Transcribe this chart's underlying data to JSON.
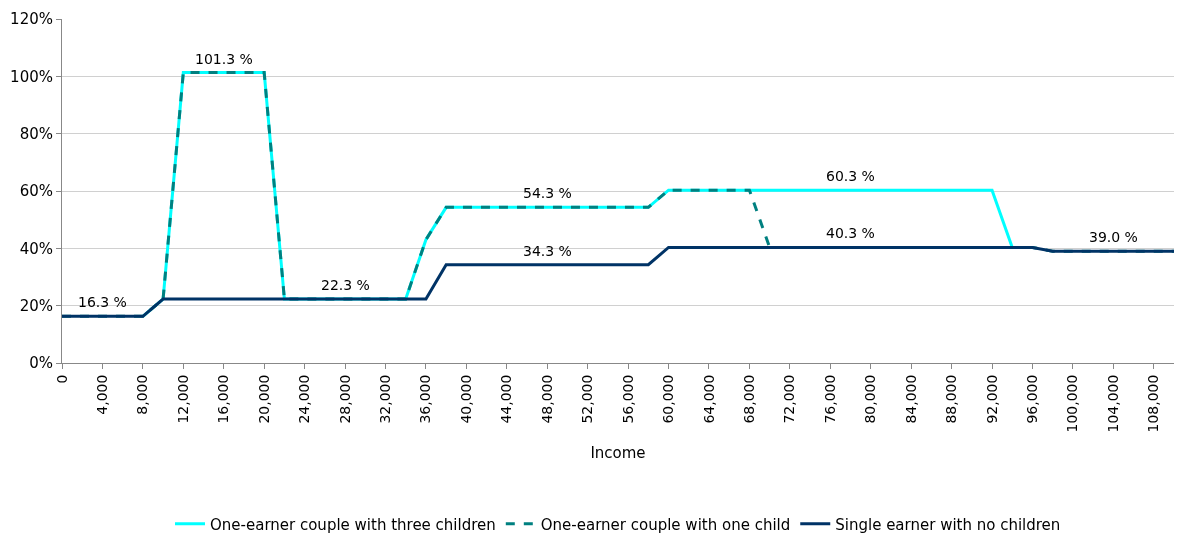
{
  "chart_data": {
    "type": "line",
    "xlabel": "Income",
    "x": [
      0,
      2000,
      4000,
      6000,
      8000,
      10000,
      12000,
      14000,
      16000,
      18000,
      20000,
      22000,
      24000,
      26000,
      28000,
      30000,
      32000,
      34000,
      36000,
      38000,
      40000,
      42000,
      44000,
      46000,
      48000,
      50000,
      52000,
      54000,
      56000,
      58000,
      60000,
      62000,
      64000,
      66000,
      68000,
      70000,
      72000,
      74000,
      76000,
      78000,
      80000,
      82000,
      84000,
      86000,
      88000,
      90000,
      92000,
      94000,
      96000,
      98000,
      100000,
      102000,
      104000,
      106000,
      108000,
      110000
    ],
    "series": [
      {
        "name": "One-earner couple with three children",
        "color": "#00ffff",
        "line_style": "solid",
        "values": [
          null,
          null,
          null,
          null,
          16.3,
          22.3,
          101.3,
          101.3,
          101.3,
          101.3,
          101.3,
          22.3,
          22.3,
          22.3,
          22.3,
          22.3,
          22.3,
          22.3,
          43,
          54.3,
          54.3,
          54.3,
          54.3,
          54.3,
          54.3,
          54.3,
          54.3,
          54.3,
          54.3,
          54.3,
          60.3,
          60.3,
          60.3,
          60.3,
          60.3,
          60.3,
          60.3,
          60.3,
          60.3,
          60.3,
          60.3,
          60.3,
          60.3,
          60.3,
          60.3,
          60.3,
          60.3,
          40.3,
          40.3,
          null,
          null,
          null,
          null,
          null,
          null,
          null
        ]
      },
      {
        "name": "One-earner couple with one child",
        "color": "#008080",
        "line_style": "dashed",
        "values": [
          16.3,
          16.3,
          16.3,
          16.3,
          16.3,
          22.3,
          101.3,
          101.3,
          101.3,
          101.3,
          101.3,
          22.3,
          22.3,
          22.3,
          22.3,
          22.3,
          22.3,
          22.3,
          43,
          54.3,
          54.3,
          54.3,
          54.3,
          54.3,
          54.3,
          54.3,
          54.3,
          54.3,
          54.3,
          54.3,
          60.3,
          60.3,
          60.3,
          60.3,
          60.3,
          40.3,
          40.3,
          40.3,
          40.3,
          40.3,
          40.3,
          40.3,
          40.3,
          40.3,
          40.3,
          40.3,
          40.3,
          40.3,
          40.3,
          39.0,
          39.0,
          39.0,
          39.0,
          39.0,
          39.0,
          39.0
        ]
      },
      {
        "name": "Single earner with no children",
        "color": "#003366",
        "line_style": "solid",
        "values": [
          16.3,
          16.3,
          16.3,
          16.3,
          16.3,
          22.3,
          22.3,
          22.3,
          22.3,
          22.3,
          22.3,
          22.3,
          22.3,
          22.3,
          22.3,
          22.3,
          22.3,
          22.3,
          22.3,
          34.3,
          34.3,
          34.3,
          34.3,
          34.3,
          34.3,
          34.3,
          34.3,
          34.3,
          34.3,
          34.3,
          40.3,
          40.3,
          40.3,
          40.3,
          40.3,
          40.3,
          40.3,
          40.3,
          40.3,
          40.3,
          40.3,
          40.3,
          40.3,
          40.3,
          40.3,
          40.3,
          40.3,
          40.3,
          40.3,
          39.0,
          39.0,
          39.0,
          39.0,
          39.0,
          39.0,
          39.0
        ]
      }
    ],
    "xlim": [
      0,
      110000
    ],
    "xticks": [
      {
        "value": 0,
        "label": "0"
      },
      {
        "value": 4000,
        "label": "4,000"
      },
      {
        "value": 8000,
        "label": "8,000"
      },
      {
        "value": 12000,
        "label": "12,000"
      },
      {
        "value": 16000,
        "label": "16,000"
      },
      {
        "value": 20000,
        "label": "20,000"
      },
      {
        "value": 24000,
        "label": "24,000"
      },
      {
        "value": 28000,
        "label": "28,000"
      },
      {
        "value": 32000,
        "label": "32,000"
      },
      {
        "value": 36000,
        "label": "36,000"
      },
      {
        "value": 40000,
        "label": "40,000"
      },
      {
        "value": 44000,
        "label": "44,000"
      },
      {
        "value": 48000,
        "label": "48,000"
      },
      {
        "value": 52000,
        "label": "52,000"
      },
      {
        "value": 56000,
        "label": "56,000"
      },
      {
        "value": 60000,
        "label": "60,000"
      },
      {
        "value": 64000,
        "label": "64,000"
      },
      {
        "value": 68000,
        "label": "68,000"
      },
      {
        "value": 72000,
        "label": "72,000"
      },
      {
        "value": 76000,
        "label": "76,000"
      },
      {
        "value": 80000,
        "label": "80,000"
      },
      {
        "value": 84000,
        "label": "84,000"
      },
      {
        "value": 88000,
        "label": "88,000"
      },
      {
        "value": 92000,
        "label": "92,000"
      },
      {
        "value": 96000,
        "label": "96,000"
      },
      {
        "value": 100000,
        "label": "100,000"
      },
      {
        "value": 104000,
        "label": "104,000"
      },
      {
        "value": 108000,
        "label": "108,000"
      }
    ],
    "ylim": [
      0,
      120
    ],
    "yticks": [
      {
        "value": 0,
        "label": "0%"
      },
      {
        "value": 20,
        "label": "20%"
      },
      {
        "value": 40,
        "label": "40%"
      },
      {
        "value": 60,
        "label": "60%"
      },
      {
        "value": 80,
        "label": "80%"
      },
      {
        "value": 100,
        "label": "100%"
      },
      {
        "value": 120,
        "label": "120%"
      }
    ],
    "grid": "y",
    "legend": "bottom",
    "annotations": [
      {
        "text": "16.3 %",
        "x": 4000,
        "y": 16.3
      },
      {
        "text": "101.3 %",
        "x": 16000,
        "y": 101.3
      },
      {
        "text": "22.3 %",
        "x": 28000,
        "y": 22.3
      },
      {
        "text": "54.3 %",
        "x": 48000,
        "y": 54.3
      },
      {
        "text": "34.3 %",
        "x": 48000,
        "y": 34.3
      },
      {
        "text": "60.3 %",
        "x": 78000,
        "y": 60.3
      },
      {
        "text": "40.3 %",
        "x": 78000,
        "y": 40.3
      },
      {
        "text": "39.0 %",
        "x": 104000,
        "y": 39.0
      }
    ]
  }
}
